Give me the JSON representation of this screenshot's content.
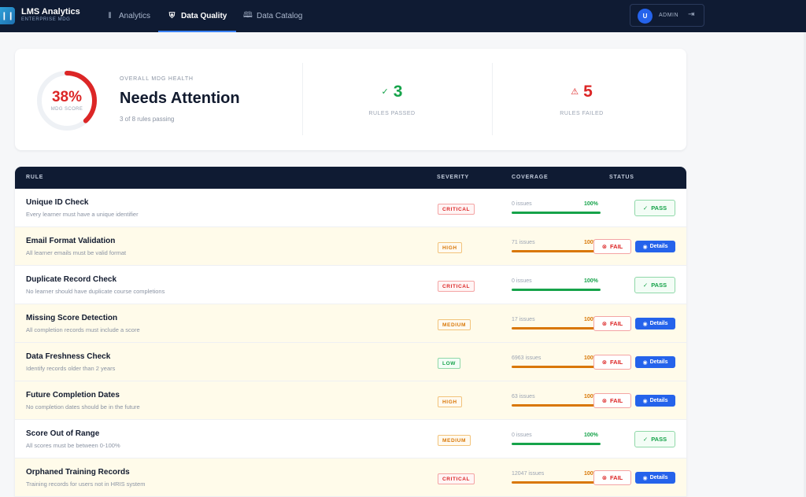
{
  "app": {
    "title": "LMS Analytics",
    "subtitle": "ENTERPRISE MDG",
    "logo_icon": "bar-chart-icon"
  },
  "nav": {
    "tabs": [
      {
        "label": "Analytics",
        "icon": "bar-chart-icon",
        "active": false
      },
      {
        "label": "Data Quality",
        "icon": "shield-check-icon",
        "active": true
      },
      {
        "label": "Data Catalog",
        "icon": "book-icon",
        "active": false
      }
    ]
  },
  "user": {
    "initial": "U",
    "role": "ADMIN",
    "logout_icon": "logout-icon"
  },
  "summary": {
    "score_pct": "38%",
    "score_value": 0.38,
    "score_label": "MDG SCORE",
    "eyebrow": "OVERALL MDG HEALTH",
    "status": "Needs Attention",
    "subtext": "3 of 8 rules passing",
    "passed": {
      "value": "3",
      "label": "RULES PASSED"
    },
    "failed": {
      "value": "5",
      "label": "RULES FAILED"
    }
  },
  "colors": {
    "pass": "#16a34a",
    "fail": "#dc2626",
    "warning": "#d97706",
    "accent": "#2563eb",
    "nav_bg": "#0f1b33"
  },
  "table": {
    "headers": {
      "rule": "RULE",
      "severity": "SEVERITY",
      "coverage": "COVERAGE",
      "status": "STATUS"
    },
    "rows": [
      {
        "name": "Unique ID Check",
        "desc": "Every learner must have a unique identifier",
        "severity": "CRITICAL",
        "issues": "0 issues",
        "coverage": "100%",
        "status": "PASS"
      },
      {
        "name": "Email Format Validation",
        "desc": "All learner emails must be valid format",
        "severity": "HIGH",
        "issues": "71 issues",
        "coverage": "100%",
        "status": "FAIL",
        "details": "Details"
      },
      {
        "name": "Duplicate Record Check",
        "desc": "No learner should have duplicate course completions",
        "severity": "CRITICAL",
        "issues": "0 issues",
        "coverage": "100%",
        "status": "PASS"
      },
      {
        "name": "Missing Score Detection",
        "desc": "All completion records must include a score",
        "severity": "MEDIUM",
        "issues": "17 issues",
        "coverage": "100%",
        "status": "FAIL",
        "details": "Details"
      },
      {
        "name": "Data Freshness Check",
        "desc": "Identify records older than 2 years",
        "severity": "LOW",
        "issues": "6963 issues",
        "coverage": "100%",
        "status": "FAIL",
        "details": "Details"
      },
      {
        "name": "Future Completion Dates",
        "desc": "No completion dates should be in the future",
        "severity": "HIGH",
        "issues": "63 issues",
        "coverage": "100%",
        "status": "FAIL",
        "details": "Details"
      },
      {
        "name": "Score Out of Range",
        "desc": "All scores must be between 0-100%",
        "severity": "MEDIUM",
        "issues": "0 issues",
        "coverage": "100%",
        "status": "PASS"
      },
      {
        "name": "Orphaned Training Records",
        "desc": "Training records for users not in HRIS system",
        "severity": "CRITICAL",
        "issues": "12047 issues",
        "coverage": "100%",
        "status": "FAIL",
        "details": "Details"
      }
    ]
  }
}
